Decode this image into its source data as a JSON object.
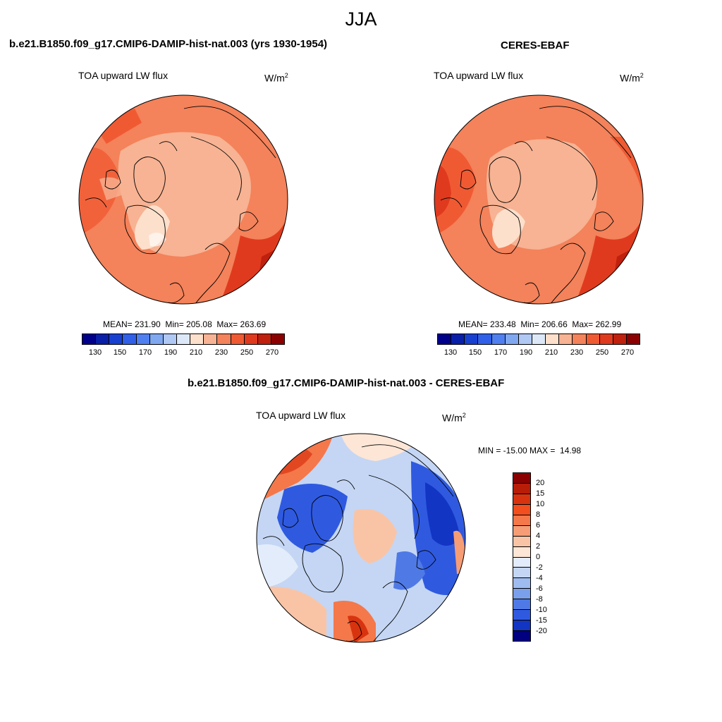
{
  "title": "JJA",
  "colors": {
    "abs_scale": [
      "#00008b",
      "#0a1fa8",
      "#1840d0",
      "#3060e8",
      "#5080f0",
      "#80a8f0",
      "#b0c8f4",
      "#dce8f8",
      "#fde0cc",
      "#f7b393",
      "#f4825a",
      "#f05a33",
      "#e03a1e",
      "#c0200e",
      "#8b0000"
    ],
    "diff_scale": [
      "#8b0000",
      "#b81d08",
      "#d8330f",
      "#f24e1e",
      "#f4784a",
      "#f69d76",
      "#f9c4a6",
      "#fde6d6",
      "#e3ecfa",
      "#c4d6f4",
      "#9fbcf0",
      "#7aa0ec",
      "#4f7ae6",
      "#2f5ae0",
      "#1235c4",
      "#000080"
    ]
  },
  "panels": [
    {
      "title": "b.e21.B1850.f09_g17.CMIP6-DAMIP-hist-nat.003 (yrs 1930-1954)",
      "variable": "TOA upward LW flux",
      "unit_base": "W/m",
      "unit_exp": "2",
      "stats": "MEAN= 231.90  Min= 205.08  Max= 263.69",
      "ticks": [
        "130",
        "150",
        "170",
        "190",
        "210",
        "230",
        "250",
        "270"
      ]
    },
    {
      "title": "CERES-EBAF",
      "variable": "TOA upward LW flux",
      "unit_base": "W/m",
      "unit_exp": "2",
      "stats": "MEAN= 233.48  Min= 206.66  Max= 262.99",
      "ticks": [
        "130",
        "150",
        "170",
        "190",
        "210",
        "230",
        "250",
        "270"
      ]
    }
  ],
  "diff_panel": {
    "title": "b.e21.B1850.f09_g17.CMIP6-DAMIP-hist-nat.003 - CERES-EBAF",
    "variable": "TOA upward LW flux",
    "unit_base": "W/m",
    "unit_exp": "2",
    "stats": "MIN = -15.00 MAX =  14.98",
    "ticks": [
      "20",
      "15",
      "10",
      "8",
      "6",
      "4",
      "2",
      "0",
      "-2",
      "-4",
      "-6",
      "-8",
      "-10",
      "-15",
      "-20"
    ]
  }
}
